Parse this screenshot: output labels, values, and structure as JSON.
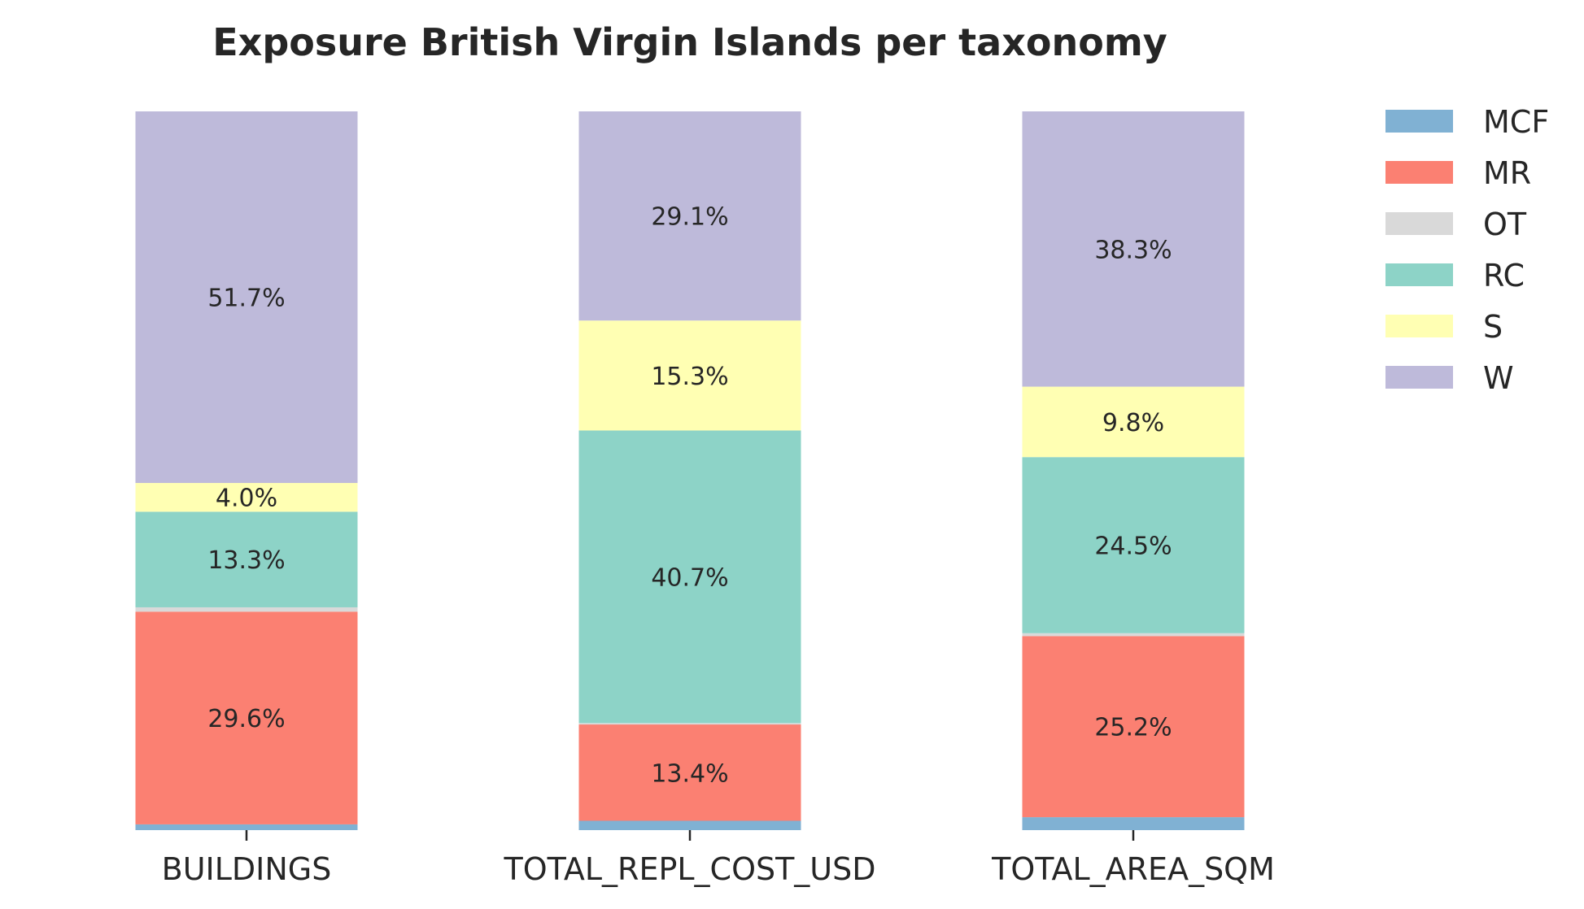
{
  "chart_data": {
    "type": "bar",
    "stacked": true,
    "normalized": true,
    "title": "Exposure British Virgin Islands per taxonomy",
    "xlabel": "",
    "ylabel": "",
    "ylim": [
      0,
      100
    ],
    "grid": false,
    "legend_position": "top-right",
    "categories": [
      "BUILDINGS",
      "TOTAL_REPL_COST_USD",
      "TOTAL_AREA_SQM"
    ],
    "series": [
      {
        "name": "MCF",
        "color": "#80b1d3",
        "values": [
          0.8,
          1.3,
          1.8
        ],
        "labels": [
          "",
          "",
          ""
        ]
      },
      {
        "name": "MR",
        "color": "#fb8072",
        "values": [
          29.6,
          13.4,
          25.2
        ],
        "labels": [
          "29.6%",
          "13.4%",
          "25.2%"
        ]
      },
      {
        "name": "OT",
        "color": "#d9d9d9",
        "values": [
          0.6,
          0.2,
          0.4
        ],
        "labels": [
          "",
          "",
          ""
        ]
      },
      {
        "name": "RC",
        "color": "#8dd3c7",
        "values": [
          13.3,
          40.7,
          24.5
        ],
        "labels": [
          "13.3%",
          "40.7%",
          "24.5%"
        ]
      },
      {
        "name": "S",
        "color": "#ffffb3",
        "values": [
          4.0,
          15.3,
          9.8
        ],
        "labels": [
          "4.0%",
          "15.3%",
          "9.8%"
        ]
      },
      {
        "name": "W",
        "color": "#bebada",
        "values": [
          51.7,
          29.1,
          38.3
        ],
        "labels": [
          "51.7%",
          "29.1%",
          "38.3%"
        ]
      }
    ]
  }
}
